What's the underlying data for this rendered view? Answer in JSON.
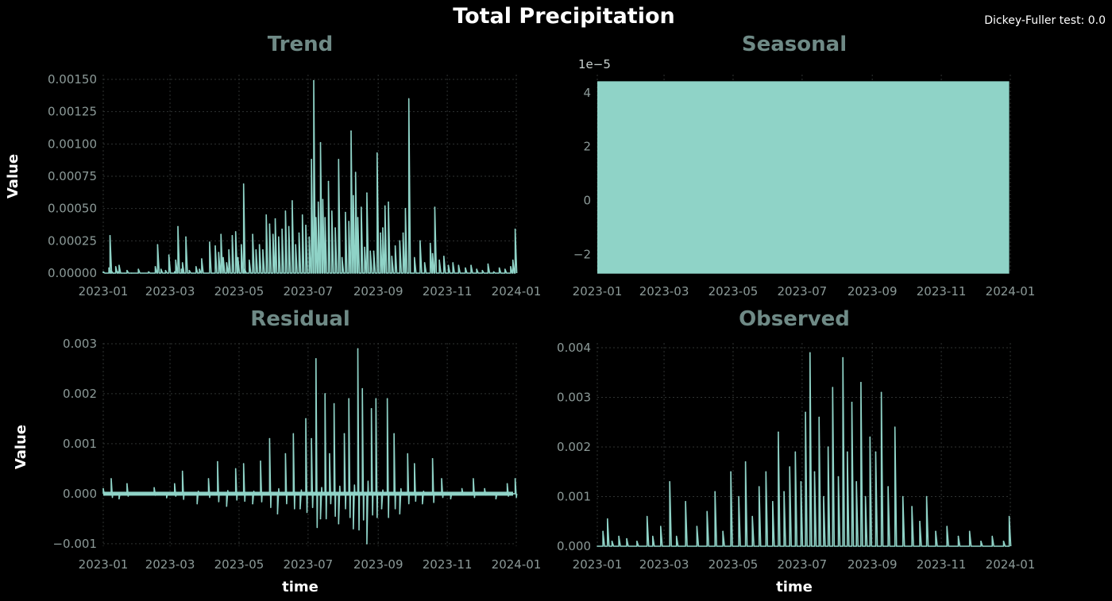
{
  "figure": {
    "title": "Total Precipitation",
    "note": "Dickey-Fuller test: 0.0",
    "line_color": "#8fd3c7",
    "background": "#000000"
  },
  "chart_data": [
    {
      "id": "trend",
      "type": "line",
      "title": "Trend",
      "ylabel": "Value",
      "xlabel": "",
      "x_ticks": [
        "2023-01",
        "2023-03",
        "2023-05",
        "2023-07",
        "2023-09",
        "2023-11",
        "2024-01"
      ],
      "x_range": [
        "2023-01-01",
        "2024-01-01"
      ],
      "ylim": [
        0,
        0.0015
      ],
      "y_ticks": [
        "0.00000",
        "0.00025",
        "0.00050",
        "0.00075",
        "0.00100",
        "0.00125",
        "0.00150"
      ],
      "y_tick_values": [
        0,
        0.00025,
        0.0005,
        0.00075,
        0.001,
        0.00125,
        0.0015
      ],
      "offset_label": "",
      "grid": true,
      "series": [
        {
          "x": [
            "2023-01-01",
            "2023-01-06",
            "2023-01-07",
            "2023-01-08",
            "2023-01-10",
            "2023-01-12",
            "2023-01-14",
            "2023-01-15",
            "2023-01-20",
            "2023-01-22",
            "2023-01-26",
            "2023-02-01",
            "2023-02-10",
            "2023-02-16",
            "2023-02-18",
            "2023-02-21",
            "2023-02-25",
            "2023-02-28",
            "2023-03-05",
            "2023-03-06",
            "2023-03-08",
            "2023-03-11",
            "2023-03-12",
            "2023-03-15",
            "2023-03-18",
            "2023-03-24",
            "2023-03-27",
            "2023-03-29",
            "2023-04-05",
            "2023-04-10",
            "2023-04-13",
            "2023-04-15",
            "2023-04-17",
            "2023-04-20",
            "2023-04-22",
            "2023-04-25",
            "2023-04-28",
            "2023-04-30",
            "2023-05-03",
            "2023-05-05",
            "2023-05-06",
            "2023-05-10",
            "2023-05-13",
            "2023-05-16",
            "2023-05-19",
            "2023-05-22",
            "2023-05-25",
            "2023-05-28",
            "2023-05-31",
            "2023-06-02",
            "2023-06-05",
            "2023-06-08",
            "2023-06-11",
            "2023-06-14",
            "2023-06-17",
            "2023-06-20",
            "2023-06-23",
            "2023-06-26",
            "2023-06-29",
            "2023-07-02",
            "2023-07-04",
            "2023-07-06",
            "2023-07-08",
            "2023-07-10",
            "2023-07-12",
            "2023-07-14",
            "2023-07-16",
            "2023-07-19",
            "2023-07-22",
            "2023-07-25",
            "2023-07-28",
            "2023-07-31",
            "2023-08-03",
            "2023-08-06",
            "2023-08-08",
            "2023-08-10",
            "2023-08-12",
            "2023-08-14",
            "2023-08-17",
            "2023-08-20",
            "2023-08-22",
            "2023-08-25",
            "2023-08-28",
            "2023-08-31",
            "2023-09-03",
            "2023-09-05",
            "2023-09-07",
            "2023-09-10",
            "2023-09-13",
            "2023-09-16",
            "2023-09-20",
            "2023-09-23",
            "2023-09-25",
            "2023-09-28",
            "2023-10-03",
            "2023-10-08",
            "2023-10-12",
            "2023-10-17",
            "2023-10-19",
            "2023-10-21",
            "2023-10-25",
            "2023-10-29",
            "2023-11-02",
            "2023-11-06",
            "2023-11-11",
            "2023-11-17",
            "2023-11-22",
            "2023-11-27",
            "2023-12-02",
            "2023-12-07",
            "2023-12-12",
            "2023-12-17",
            "2023-12-22",
            "2023-12-27",
            "2023-12-29",
            "2023-12-31"
          ],
          "y": [
            1e-05,
            4e-05,
            0.00029,
            2e-05,
            0.0,
            5e-05,
            1e-05,
            6e-05,
            0.0,
            2e-05,
            0.0,
            3e-05,
            1e-05,
            5e-05,
            0.00022,
            3e-05,
            2e-05,
            0.00014,
            1e-05,
            0.0001,
            0.00036,
            3e-05,
            8e-05,
            0.00028,
            2e-05,
            5e-05,
            3e-05,
            0.00011,
            0.00024,
            0.00021,
            0.00016,
            0.0003,
            0.00012,
            8e-05,
            0.00018,
            0.00029,
            0.00032,
            0.00012,
            0.00022,
            0.00069,
            3e-05,
            0.0001,
            0.0003,
            0.00018,
            0.00022,
            0.00018,
            0.00045,
            0.00038,
            0.0003,
            0.00042,
            0.00028,
            0.00034,
            0.00048,
            0.00036,
            0.00056,
            0.00022,
            0.00031,
            0.00045,
            0.00037,
            0.00028,
            0.00088,
            0.00149,
            0.00043,
            0.00055,
            0.00101,
            0.00057,
            0.00043,
            0.00071,
            0.00048,
            0.00035,
            0.00088,
            0.00012,
            0.00047,
            0.0004,
            0.0011,
            0.0006,
            0.00078,
            0.00043,
            0.00051,
            0.0002,
            0.00062,
            0.00017,
            0.00017,
            0.00093,
            0.00031,
            0.00035,
            0.00052,
            0.00055,
            0.00013,
            0.00021,
            0.00025,
            0.00031,
            0.0005,
            0.00135,
            0.00012,
            0.00025,
            8e-05,
            0.00023,
            0.00015,
            0.00051,
            0.0001,
            0.00013,
            6e-05,
            8e-05,
            6e-05,
            4e-05,
            6e-05,
            3e-05,
            2e-05,
            7e-05,
            1e-05,
            4e-05,
            3e-05,
            5e-05,
            0.0001,
            0.00034
          ]
        }
      ]
    },
    {
      "id": "seasonal",
      "type": "line",
      "title": "Seasonal",
      "ylabel": "",
      "xlabel": "",
      "x_ticks": [
        "2023-01",
        "2023-03",
        "2023-05",
        "2023-07",
        "2023-09",
        "2023-11",
        "2024-01"
      ],
      "x_range": [
        "2023-01-01",
        "2024-01-01"
      ],
      "ylim": [
        -2.7e-05,
        4.5e-05
      ],
      "y_ticks": [
        "−2",
        "0",
        "2",
        "4"
      ],
      "y_tick_values": [
        -2e-05,
        0,
        2e-05,
        4e-05
      ],
      "offset_label": "1e−5",
      "grid": true,
      "series": [
        {
          "x_start": "2023-01-01",
          "x_end": "2023-12-31",
          "min": -2.72e-05,
          "max": 4.43e-05,
          "note": "dense high-frequency oscillation; fills band between min and max"
        }
      ]
    },
    {
      "id": "residual",
      "type": "line",
      "title": "Residual",
      "ylabel": "Value",
      "xlabel": "time",
      "x_ticks": [
        "2023-01",
        "2023-03",
        "2023-05",
        "2023-07",
        "2023-09",
        "2023-11",
        "2024-01"
      ],
      "x_range": [
        "2023-01-01",
        "2024-01-01"
      ],
      "ylim": [
        -0.00105,
        0.00292
      ],
      "y_ticks": [
        "−0.001",
        "0.000",
        "0.001",
        "0.002",
        "0.003"
      ],
      "y_tick_values": [
        -0.001,
        0,
        0.001,
        0.002,
        0.003
      ],
      "offset_label": "",
      "grid": true,
      "series": [
        {
          "x": [
            "2023-01-01",
            "2023-01-08",
            "2023-01-15",
            "2023-01-22",
            "2023-02-01",
            "2023-02-15",
            "2023-02-26",
            "2023-03-05",
            "2023-03-12",
            "2023-03-25",
            "2023-04-04",
            "2023-04-12",
            "2023-04-20",
            "2023-04-28",
            "2023-05-05",
            "2023-05-13",
            "2023-05-20",
            "2023-05-28",
            "2023-06-04",
            "2023-06-11",
            "2023-06-18",
            "2023-06-24",
            "2023-06-29",
            "2023-07-04",
            "2023-07-08",
            "2023-07-12",
            "2023-07-16",
            "2023-07-20",
            "2023-07-24",
            "2023-07-28",
            "2023-08-02",
            "2023-08-06",
            "2023-08-10",
            "2023-08-14",
            "2023-08-18",
            "2023-08-22",
            "2023-08-26",
            "2023-08-30",
            "2023-09-04",
            "2023-09-09",
            "2023-09-15",
            "2023-09-20",
            "2023-09-27",
            "2023-10-03",
            "2023-10-10",
            "2023-10-19",
            "2023-10-27",
            "2023-11-04",
            "2023-11-14",
            "2023-11-24",
            "2023-12-04",
            "2023-12-14",
            "2023-12-24",
            "2023-12-31"
          ],
          "y": [
            0.0001,
            0.0003,
            -0.0001,
            0.0002,
            0.0,
            0.00012,
            -8e-05,
            0.0002,
            0.00045,
            -0.0002,
            0.0003,
            0.00064,
            -0.00025,
            0.0005,
            0.0006,
            -0.0002,
            0.00065,
            0.0011,
            -0.0004,
            0.0008,
            0.0012,
            -0.0003,
            0.0015,
            0.0011,
            0.0027,
            -0.0005,
            0.002,
            0.0008,
            0.0018,
            -0.0006,
            0.0012,
            0.0019,
            -0.0007,
            0.0029,
            0.0021,
            -0.001,
            0.0017,
            0.0019,
            -0.0003,
            0.0019,
            0.0012,
            -0.0004,
            0.0008,
            0.0006,
            -0.0002,
            0.0007,
            0.0003,
            -0.0001,
            0.0001,
            0.0003,
            0.0001,
            -0.0001,
            0.0002,
            0.0003
          ]
        }
      ]
    },
    {
      "id": "observed",
      "type": "line",
      "title": "Observed",
      "ylabel": "",
      "xlabel": "time",
      "x_ticks": [
        "2023-01",
        "2023-03",
        "2023-05",
        "2023-07",
        "2023-09",
        "2023-11",
        "2024-01"
      ],
      "x_range": [
        "2023-01-01",
        "2024-01-01"
      ],
      "ylim": [
        0,
        0.004
      ],
      "y_ticks": [
        "0.000",
        "0.001",
        "0.002",
        "0.003",
        "0.004"
      ],
      "y_tick_values": [
        0,
        0.001,
        0.002,
        0.003,
        0.004
      ],
      "offset_label": "",
      "grid": true,
      "series": [
        {
          "x": [
            "2023-01-01",
            "2023-01-06",
            "2023-01-10",
            "2023-01-14",
            "2023-01-20",
            "2023-01-27",
            "2023-02-05",
            "2023-02-14",
            "2023-02-19",
            "2023-02-26",
            "2023-03-06",
            "2023-03-12",
            "2023-03-20",
            "2023-03-30",
            "2023-04-08",
            "2023-04-15",
            "2023-04-22",
            "2023-04-29",
            "2023-05-06",
            "2023-05-12",
            "2023-05-18",
            "2023-05-24",
            "2023-05-30",
            "2023-06-05",
            "2023-06-10",
            "2023-06-15",
            "2023-06-20",
            "2023-06-25",
            "2023-06-30",
            "2023-07-04",
            "2023-07-08",
            "2023-07-12",
            "2023-07-16",
            "2023-07-20",
            "2023-07-24",
            "2023-07-28",
            "2023-08-02",
            "2023-08-06",
            "2023-08-10",
            "2023-08-14",
            "2023-08-18",
            "2023-08-22",
            "2023-08-26",
            "2023-08-30",
            "2023-09-04",
            "2023-09-09",
            "2023-09-15",
            "2023-09-21",
            "2023-09-28",
            "2023-10-06",
            "2023-10-13",
            "2023-10-19",
            "2023-10-27",
            "2023-11-06",
            "2023-11-16",
            "2023-11-26",
            "2023-12-06",
            "2023-12-16",
            "2023-12-26",
            "2023-12-31"
          ],
          "y": [
            0.0,
            0.0003,
            0.00055,
            0.0001,
            0.0002,
            0.00015,
            0.0001,
            0.0006,
            0.0002,
            0.0004,
            0.0013,
            0.0002,
            0.0009,
            0.0004,
            0.0007,
            0.0011,
            0.0003,
            0.0015,
            0.001,
            0.0017,
            0.0006,
            0.0012,
            0.0015,
            0.0009,
            0.0023,
            0.0011,
            0.0016,
            0.0019,
            0.0013,
            0.0027,
            0.0039,
            0.0015,
            0.0026,
            0.001,
            0.002,
            0.0032,
            0.0014,
            0.0038,
            0.0019,
            0.0029,
            0.0013,
            0.0033,
            0.001,
            0.0022,
            0.0019,
            0.0031,
            0.0012,
            0.0024,
            0.001,
            0.0008,
            0.0005,
            0.001,
            0.0003,
            0.0004,
            0.0002,
            0.0003,
            0.0001,
            0.0002,
            0.0001,
            0.0006
          ]
        }
      ]
    }
  ]
}
